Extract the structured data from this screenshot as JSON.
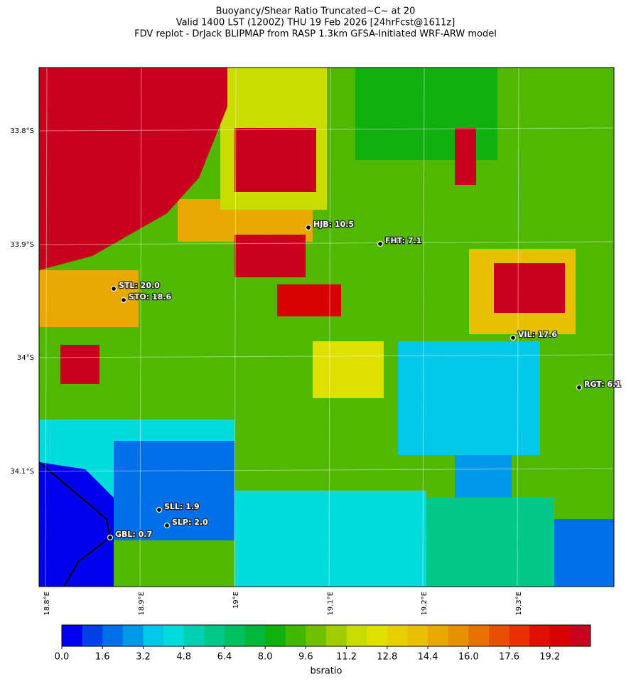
{
  "title": [
    "Buoyancy/Shear Ratio Truncated~C~    at 20",
    "Valid 1400 LST (1200Z) THU 19 Feb 2026 [24hrFcst@1611z]",
    "FDV replot - DrJack BLIPMAP from RASP 1.3km GFSA-Initiated WRF-ARW model"
  ],
  "map": {
    "lat_labels": [
      "33.8°S",
      "33.9°S",
      "34°S",
      "34.1°S"
    ],
    "lon_labels": [
      "18.8°E",
      "18.9°E",
      "19°E",
      "19.1°E",
      "19.2°E",
      "19.3°E"
    ],
    "stations": [
      "HJB: 10.5",
      "FHT: 7.1",
      "STL: 20.0",
      "STO: 18.6",
      "VIL: 17.6",
      "RGT: 6.1",
      "SLL: 1.9",
      "SLP: 2.0",
      "GBL: 0.7"
    ]
  },
  "colorbar": {
    "lim": [
      0,
      20.8
    ],
    "ticks": [
      {
        "value": 0,
        "label": "0.0"
      },
      {
        "value": 1.6,
        "label": "1.6"
      },
      {
        "value": 3.2,
        "label": "3.2"
      },
      {
        "value": 4.8,
        "label": "4.8"
      },
      {
        "value": 6.4,
        "label": "6.4"
      },
      {
        "value": 8,
        "label": "8.0"
      },
      {
        "value": 9.6,
        "label": "9.6"
      },
      {
        "value": 11.2,
        "label": "11.2"
      },
      {
        "value": 12.8,
        "label": "12.8"
      },
      {
        "value": 14.4,
        "label": "14.4"
      },
      {
        "value": 16,
        "label": "16.0"
      },
      {
        "value": 17.6,
        "label": "17.6"
      },
      {
        "value": 19.2,
        "label": "19.2"
      }
    ],
    "colors": [
      "#0000ee",
      "#0040e8",
      "#0070e8",
      "#0098e8",
      "#00c8e8",
      "#00dcdc",
      "#00d0b0",
      "#00c888",
      "#00c060",
      "#00b838",
      "#10b010",
      "#40b800",
      "#70c000",
      "#a0cc00",
      "#c8dc00",
      "#e0e000",
      "#e8d000",
      "#e8c000",
      "#e8a800",
      "#e89000",
      "#e87000",
      "#e85000",
      "#e83000",
      "#e01000",
      "#d80000",
      "#c8001e"
    ],
    "label": "bsratio"
  }
}
